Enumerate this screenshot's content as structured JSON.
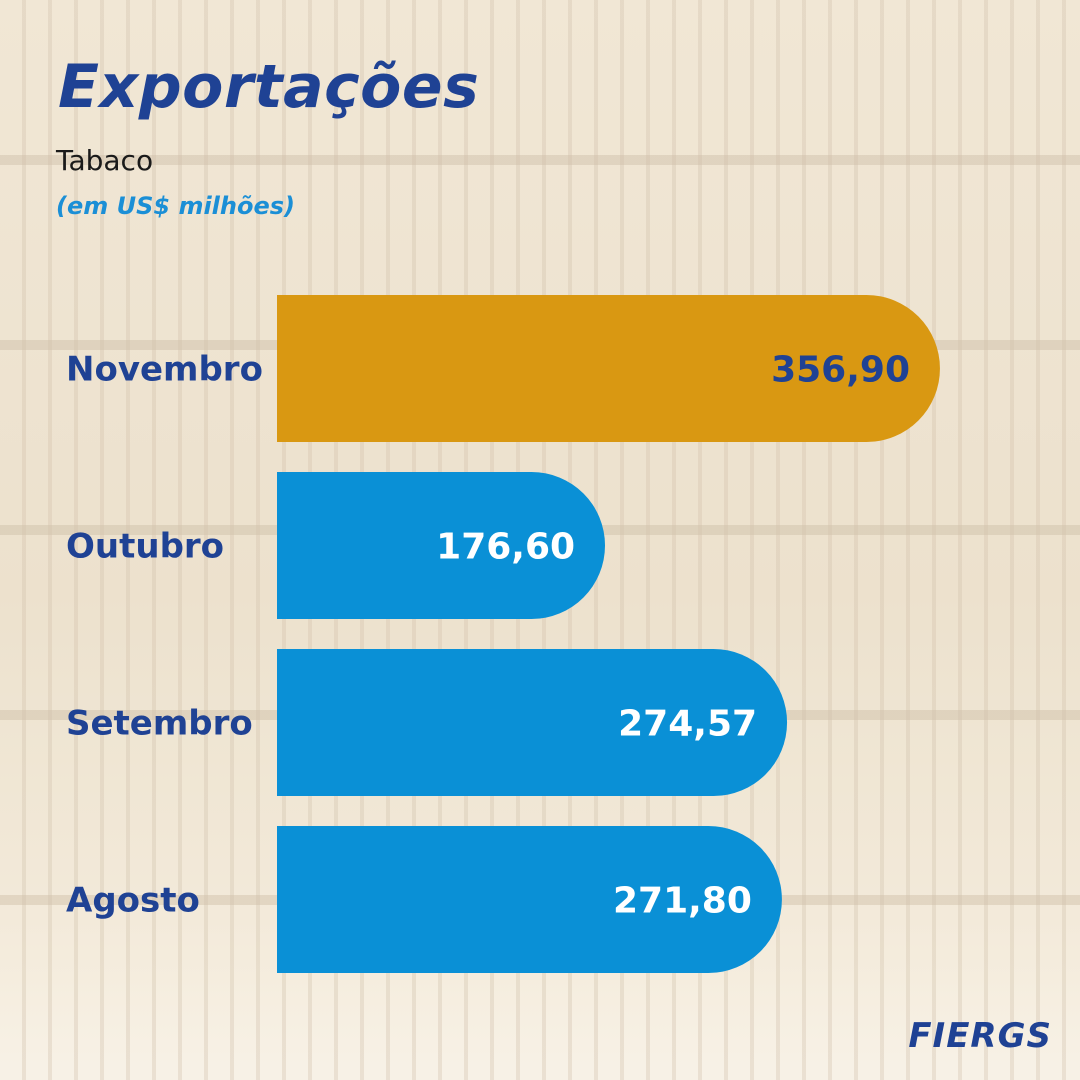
{
  "title": "Exportações",
  "subtitle": "Tabaco",
  "unit": "(em US$ milhões)",
  "logo_text": "FIERGS",
  "colors": {
    "title": "#1f4294",
    "highlight_bar": "#d99812",
    "bar": "#0a90d6",
    "highlight_value_text": "#1f4294",
    "value_text": "#ffffff",
    "unit_text": "#1b8fd6"
  },
  "chart_data": {
    "type": "bar",
    "orientation": "horizontal",
    "categories": [
      "Novembro",
      "Outubro",
      "Setembro",
      "Agosto"
    ],
    "values": [
      356.9,
      176.6,
      274.57,
      271.8
    ],
    "value_labels": [
      "356,90",
      "176,60",
      "274,57",
      "271,80"
    ],
    "highlight_index": 0,
    "title": "Exportações",
    "subtitle": "Tabaco",
    "unit": "(em US$ milhões)",
    "xlim": [
      0,
      356.9
    ],
    "grid": false,
    "legend": "none"
  }
}
